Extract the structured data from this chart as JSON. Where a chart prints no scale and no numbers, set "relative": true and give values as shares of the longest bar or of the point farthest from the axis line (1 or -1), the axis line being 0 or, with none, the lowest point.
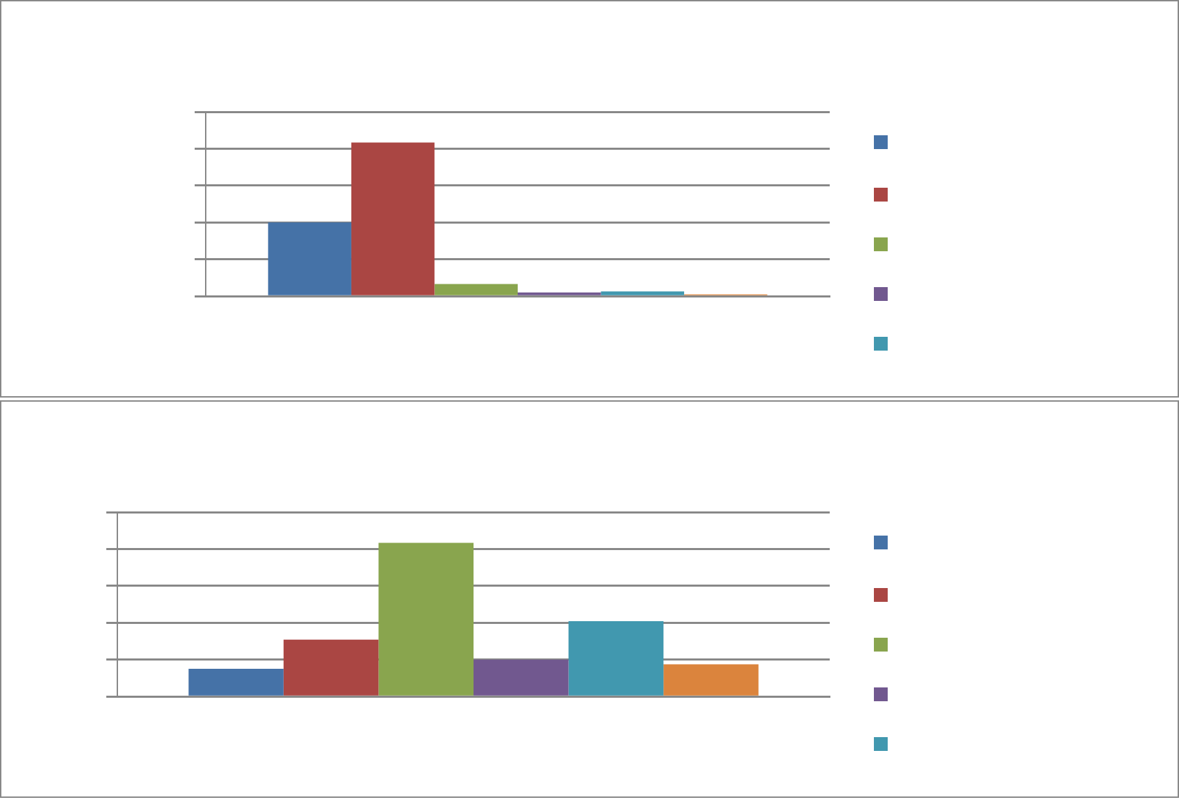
{
  "chart_data": [
    {
      "type": "bar",
      "relative": true,
      "categories": [
        null
      ],
      "grid": "y",
      "series": [
        {
          "color": "#4572a7",
          "values": [
            0.48
          ]
        },
        {
          "color": "#aa4643",
          "values": [
            1
          ]
        },
        {
          "color": "#89a54e",
          "values": [
            0.08
          ]
        },
        {
          "color": "#71588f",
          "values": [
            0.024
          ]
        },
        {
          "color": "#4198af",
          "values": [
            0.031
          ]
        },
        {
          "color": "#db843d",
          "values": [
            0.012
          ]
        }
      ]
    },
    {
      "type": "bar",
      "relative": true,
      "categories": [
        null
      ],
      "grid": "y",
      "series": [
        {
          "color": "#4572a7",
          "values": [
            0.18
          ]
        },
        {
          "color": "#aa4643",
          "values": [
            0.37
          ]
        },
        {
          "color": "#89a54e",
          "values": [
            1
          ]
        },
        {
          "color": "#71588f",
          "values": [
            0.24
          ]
        },
        {
          "color": "#4198af",
          "values": [
            0.49
          ]
        },
        {
          "color": "#db843d",
          "values": [
            0.21
          ]
        }
      ]
    }
  ]
}
